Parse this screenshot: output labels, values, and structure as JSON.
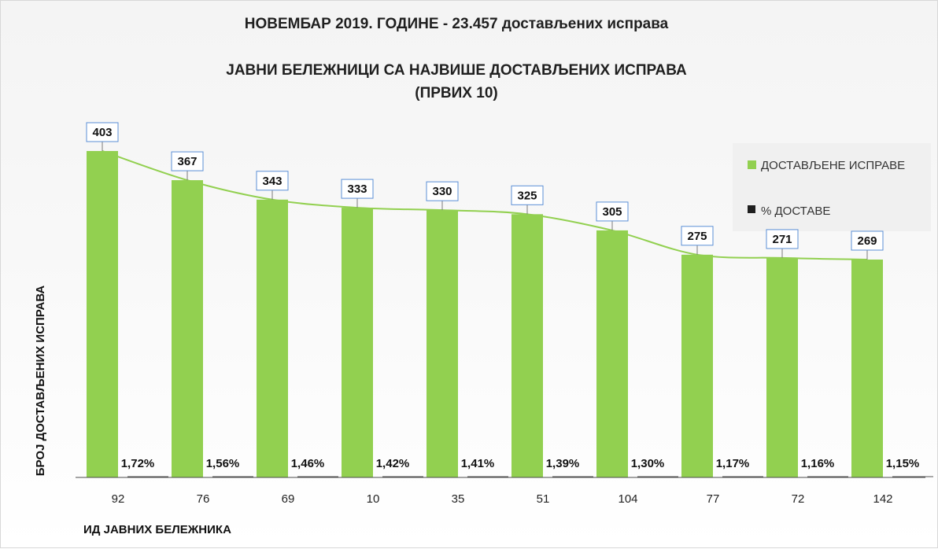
{
  "header": {
    "title": "НОВЕМБАР 2019. ГОДИНЕ - 23.457 достављених исправа",
    "subtitle_line1": "ЈАВНИ БЕЛЕЖНИЦИ СА НАЈВИШЕ ДОСТАВЉЕНИХ ИСПРАВА",
    "subtitle_line2": "(ПРВИХ 10)"
  },
  "chart_data": {
    "type": "bar",
    "title": "ЈАВНИ БЕЛЕЖНИЦИ СА НАЈВИШЕ ДОСТАВЉЕНИХ ИСПРАВА",
    "subtitle": "(ПРВИХ 10)",
    "xlabel": "ИД ЈАВНИХ БЕЛЕЖНИКА",
    "ylabel": "БРОЈ ДОСТАВЉЕНИХ ИСПРАВА",
    "categories": [
      "92",
      "76",
      "69",
      "10",
      "35",
      "51",
      "104",
      "77",
      "72",
      "142"
    ],
    "series": [
      {
        "name": "ДОСТАВЉЕНЕ ИСПРАВЕ",
        "values": [
          403,
          367,
          343,
          333,
          330,
          325,
          305,
          275,
          271,
          269
        ],
        "labels": [
          "403",
          "367",
          "343",
          "333",
          "330",
          "325",
          "305",
          "275",
          "271",
          "269"
        ],
        "color": "#92d050"
      },
      {
        "name": "% ДОСТАВЕ",
        "values": [
          1.72,
          1.56,
          1.46,
          1.42,
          1.41,
          1.39,
          1.3,
          1.17,
          1.16,
          1.15
        ],
        "labels": [
          "1,72%",
          "1,56%",
          "1,46%",
          "1,42%",
          "1,41%",
          "1,39%",
          "1,30%",
          "1,17%",
          "1,16%",
          "1,15%"
        ],
        "color": "#1f1f1f"
      }
    ],
    "legend": {
      "position": "top-right",
      "items": [
        "ДОСТАВЉЕНЕ ИСПРАВЕ",
        "% ДОСТАВЕ"
      ]
    },
    "trendline": {
      "type": "smooth-line",
      "color": "#92d050"
    },
    "ylim": [
      0,
      403
    ],
    "grid": false
  }
}
